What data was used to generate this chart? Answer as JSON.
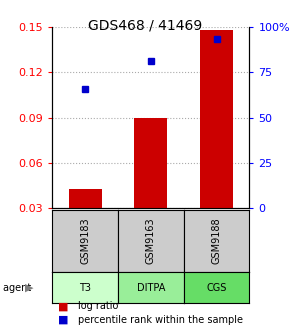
{
  "title": "GDS468 / 41469",
  "samples": [
    "GSM9183",
    "GSM9163",
    "GSM9188"
  ],
  "agents": [
    "T3",
    "DITPA",
    "CGS"
  ],
  "log_ratios": [
    0.043,
    0.09,
    0.148
  ],
  "percentile_ranks": [
    0.66,
    0.81,
    0.935
  ],
  "bar_color": "#cc0000",
  "dot_color": "#0000cc",
  "ylim_left": [
    0.03,
    0.15
  ],
  "ylim_right": [
    0.0,
    1.0
  ],
  "yticks_left": [
    0.03,
    0.06,
    0.09,
    0.12,
    0.15
  ],
  "yticks_right": [
    0.0,
    0.25,
    0.5,
    0.75,
    1.0
  ],
  "ytick_labels_left": [
    "0.03",
    "0.06",
    "0.09",
    "0.12",
    "0.15"
  ],
  "ytick_labels_right": [
    "0",
    "25",
    "50",
    "75",
    "100%"
  ],
  "agent_colors": [
    "#ccffcc",
    "#99ee99",
    "#66dd66"
  ],
  "sample_bg_color": "#cccccc",
  "grid_color": "#aaaaaa",
  "bar_bottom": 0.03
}
